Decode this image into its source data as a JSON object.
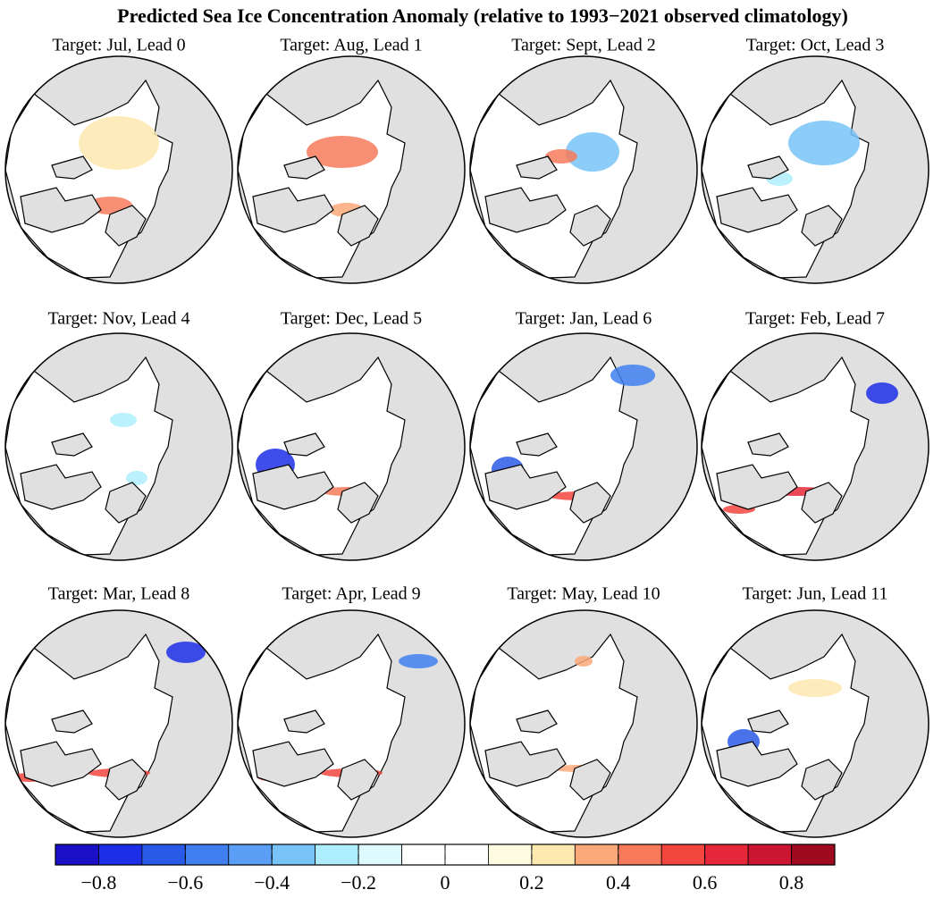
{
  "title": "Predicted Sea Ice Concentration Anomaly (relative to 1993−2021 observed climatology)",
  "panels": [
    {
      "title": "Target: Jul, Lead 0"
    },
    {
      "title": "Target: Aug, Lead 1"
    },
    {
      "title": "Target: Sept, Lead 2"
    },
    {
      "title": "Target: Oct, Lead 3"
    },
    {
      "title": "Target: Nov, Lead 4"
    },
    {
      "title": "Target: Dec, Lead 5"
    },
    {
      "title": "Target: Jan, Lead 6"
    },
    {
      "title": "Target: Feb, Lead 7"
    },
    {
      "title": "Target: Mar, Lead 8"
    },
    {
      "title": "Target: Apr, Lead 9"
    },
    {
      "title": "Target: May, Lead 10"
    },
    {
      "title": "Target: Jun, Lead 11"
    }
  ],
  "colorbar": {
    "range": [
      -0.9,
      0.9
    ],
    "ticks": [
      {
        "value": -0.8,
        "label": "−0.8"
      },
      {
        "value": -0.6,
        "label": "−0.6"
      },
      {
        "value": -0.4,
        "label": "−0.4"
      },
      {
        "value": -0.2,
        "label": "−0.2"
      },
      0,
      0.2,
      0.4,
      0.6,
      0.8
    ],
    "colors": [
      "#1a10c8",
      "#1d2fe6",
      "#2a5ae8",
      "#3f7ff0",
      "#5a9ef5",
      "#78c3f8",
      "#aeeefc",
      "#ddfbff",
      "#ffffff",
      "#ffffff",
      "#fffbe0",
      "#fde8b0",
      "#fca97a",
      "#f77a5a",
      "#f2463e",
      "#e6283a",
      "#cc1530",
      "#a00a1e"
    ]
  }
}
